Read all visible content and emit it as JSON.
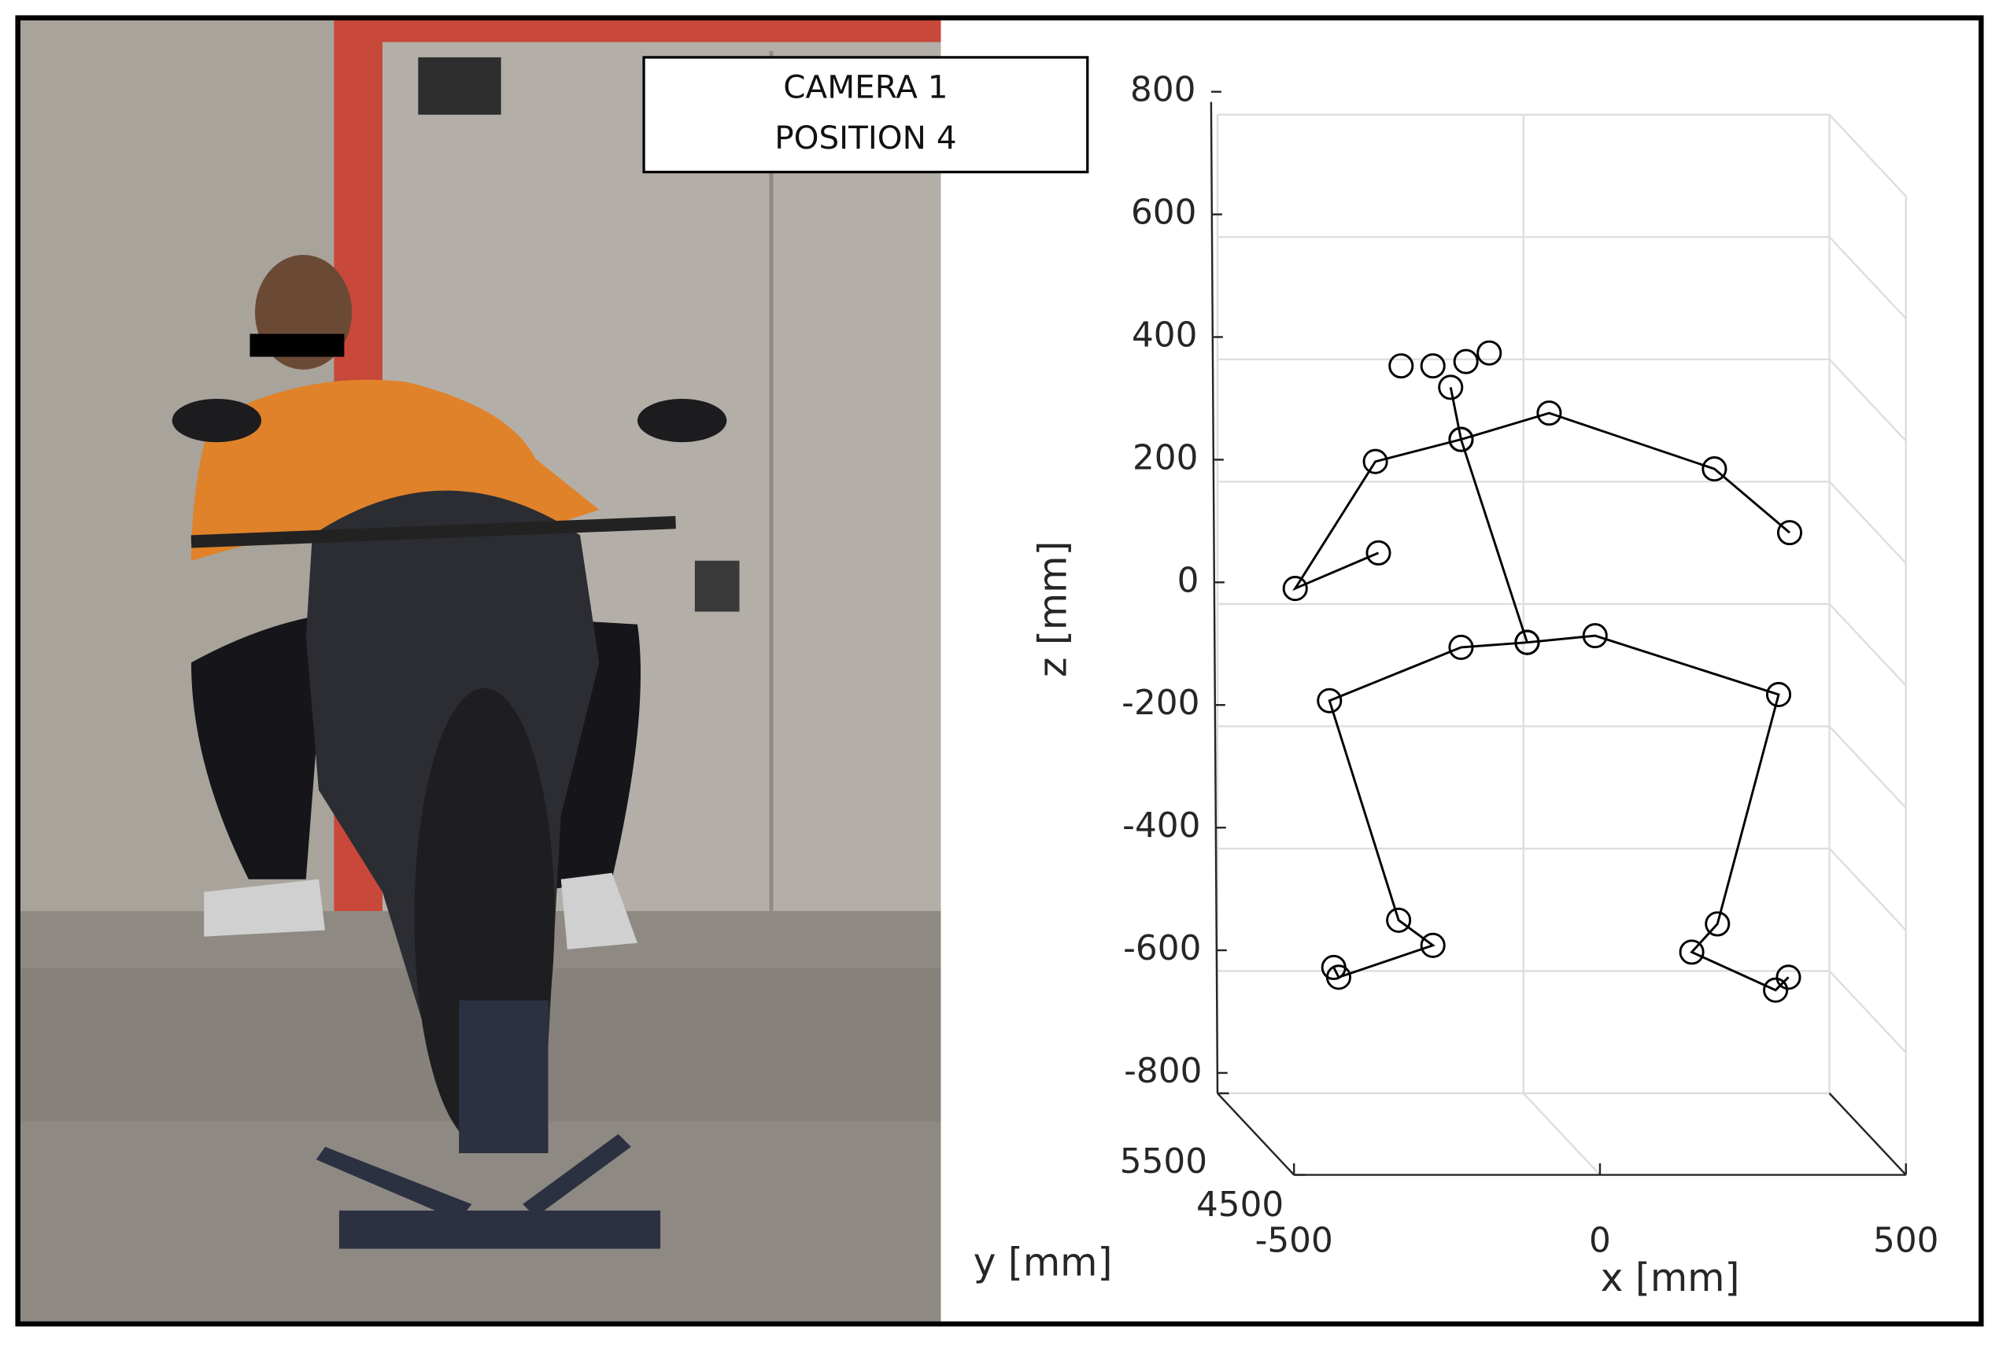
{
  "label": {
    "line1": "CAMERA 1",
    "line2": "POSITION 4"
  },
  "chart_data": {
    "type": "scatter3d",
    "xlabel": "x [mm]",
    "ylabel": "y [mm]",
    "zlabel": "z [mm]",
    "xlim": [
      -500,
      500
    ],
    "ylim": [
      4500,
      5500
    ],
    "zlim": [
      -800,
      800
    ],
    "xticks": [
      -500,
      0,
      500
    ],
    "yticks": [
      4500,
      5500
    ],
    "zticks": [
      -800,
      -600,
      -400,
      -200,
      0,
      200,
      400,
      600,
      800
    ],
    "grid": true,
    "color": "#000000",
    "series": [
      {
        "line": false,
        "x": [
          -200,
          -148,
          -94,
          -56
        ],
        "z": [
          353,
          353,
          360,
          374
        ]
      },
      {
        "line": true,
        "x": [
          -119,
          -102,
          6
        ],
        "z": [
          318,
          233,
          -98
        ]
      },
      {
        "line": true,
        "x": [
          -102,
          -242,
          -373,
          -237
        ],
        "z": [
          233,
          197,
          -10,
          48
        ]
      },
      {
        "line": true,
        "x": [
          -102,
          42,
          312,
          435
        ],
        "z": [
          233,
          276,
          185,
          81
        ]
      },
      {
        "line": true,
        "x": [
          6,
          -102,
          -317,
          -204,
          -148,
          -302,
          -310
        ],
        "z": [
          -98,
          -106,
          -193,
          -551,
          -592,
          -644,
          -628
        ]
      },
      {
        "line": true,
        "x": [
          6,
          117,
          417,
          317,
          275,
          412,
          433
        ],
        "z": [
          -98,
          -87,
          -183,
          -557,
          -603,
          -665,
          -644
        ]
      }
    ]
  }
}
